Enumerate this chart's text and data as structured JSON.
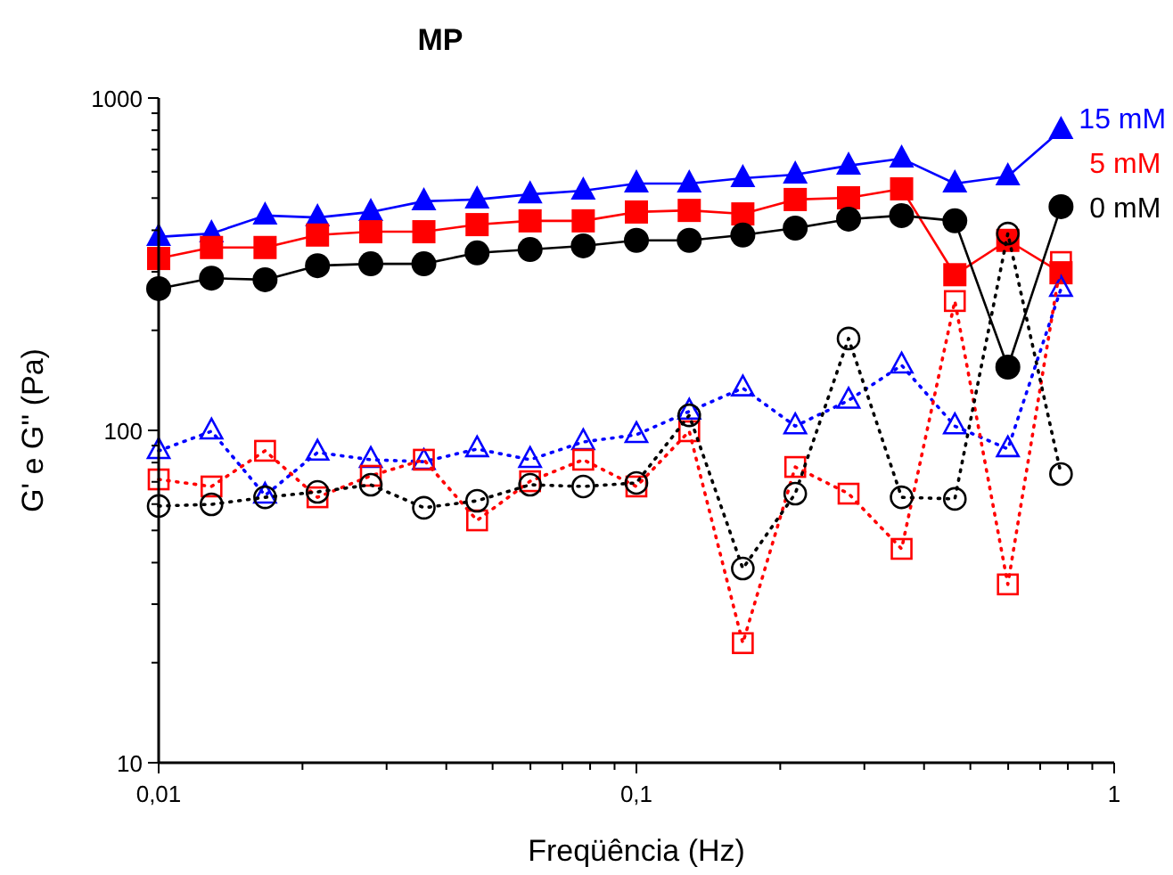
{
  "chart_data": {
    "type": "line",
    "title": "MP",
    "xlabel": "Freqüência (Hz)",
    "ylabel": "G' e G'' (Pa)",
    "log": "xy",
    "grid": false,
    "x": [
      0.01,
      0.0129,
      0.0167,
      0.0215,
      0.0278,
      0.0359,
      0.0464,
      0.0599,
      0.0774,
      0.1,
      0.129,
      0.167,
      0.215,
      0.278,
      0.359,
      0.464,
      0.599,
      0.774
    ],
    "xlim": [
      0.01,
      1
    ],
    "ylim": [
      10,
      1000
    ],
    "xticks": [
      {
        "value": 0.01,
        "label": "0,01"
      },
      {
        "value": 0.02,
        "label": null
      },
      {
        "value": 0.03,
        "label": null
      },
      {
        "value": 0.04,
        "label": null
      },
      {
        "value": 0.05,
        "label": null
      },
      {
        "value": 0.06,
        "label": null
      },
      {
        "value": 0.07,
        "label": null
      },
      {
        "value": 0.08,
        "label": null
      },
      {
        "value": 0.09,
        "label": null
      },
      {
        "value": 0.1,
        "label": "0,1"
      },
      {
        "value": 0.2,
        "label": null
      },
      {
        "value": 0.3,
        "label": null
      },
      {
        "value": 0.4,
        "label": null
      },
      {
        "value": 0.5,
        "label": null
      },
      {
        "value": 0.6,
        "label": null
      },
      {
        "value": 0.7,
        "label": null
      },
      {
        "value": 0.8,
        "label": null
      },
      {
        "value": 0.9,
        "label": null
      },
      1
    ],
    "yticks": [
      10,
      {
        "value": 20,
        "label": null
      },
      {
        "value": 30,
        "label": null
      },
      {
        "value": 40,
        "label": null
      },
      {
        "value": 50,
        "label": null
      },
      {
        "value": 60,
        "label": null
      },
      {
        "value": 70,
        "label": null
      },
      {
        "value": 80,
        "label": null
      },
      {
        "value": 90,
        "label": null
      },
      100,
      {
        "value": 200,
        "label": null
      },
      {
        "value": 300,
        "label": null
      },
      {
        "value": 400,
        "label": null
      },
      {
        "value": 500,
        "label": null
      },
      {
        "value": 600,
        "label": null
      },
      {
        "value": 700,
        "label": null
      },
      {
        "value": 800,
        "label": null
      },
      {
        "value": 900,
        "label": null
      },
      1000
    ],
    "series": [
      {
        "name": "15 mM",
        "color": "#0000ff",
        "marker": "triangle",
        "line_style": "solid",
        "values": [
          382,
          391,
          443,
          437,
          454,
          489,
          495,
          513,
          526,
          553,
          553,
          574,
          588,
          626,
          657,
          553,
          581,
          801
        ]
      },
      {
        "name": "5 mM",
        "color": "#ff0000",
        "marker": "square",
        "line_style": "solid",
        "values": [
          329,
          355,
          355,
          387,
          396,
          396,
          416,
          427,
          427,
          454,
          459,
          448,
          495,
          501,
          533,
          294,
          373,
          298
        ]
      },
      {
        "name": "0 mM",
        "color": "#000000",
        "marker": "circle",
        "line_style": "solid",
        "values": [
          267,
          287,
          284,
          313,
          317,
          317,
          342,
          350,
          359,
          373,
          373,
          387,
          406,
          432,
          443,
          427,
          155,
          471
        ]
      },
      {
        "color": "#0000ff",
        "marker": "triangle",
        "line_style": "dotted",
        "values": [
          86.8,
          99.4,
          63.7,
          85.8,
          81.6,
          80.5,
          87.9,
          81.6,
          92.3,
          97,
          114,
          134,
          103,
          123,
          157,
          103,
          87.9,
          267
        ]
      },
      {
        "color": "#ff0000",
        "marker": "square",
        "line_style": "dotted",
        "values": [
          71.2,
          67.8,
          86.8,
          62.9,
          73,
          81.6,
          53.6,
          70.3,
          81.6,
          67.8,
          99.4,
          22.9,
          77.6,
          64.5,
          44,
          245,
          34.4,
          321
        ]
      },
      {
        "color": "#000000",
        "marker": "circle",
        "line_style": "dotted",
        "values": [
          59.2,
          59.9,
          62.9,
          65.3,
          68.6,
          58.5,
          61.4,
          68.6,
          67.8,
          69.5,
          111,
          38.4,
          64.5,
          189,
          62.9,
          62.2,
          391,
          73.9
        ]
      }
    ]
  }
}
